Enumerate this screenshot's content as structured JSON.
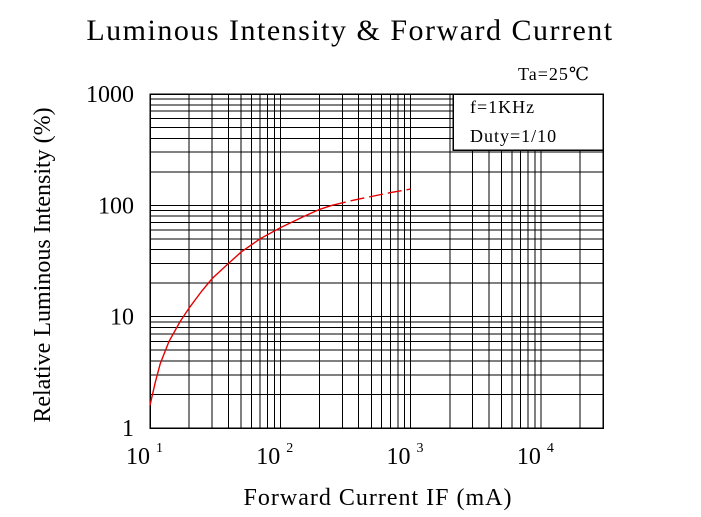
{
  "chart_data": {
    "type": "line",
    "title": "Luminous Intensity & Forward Current",
    "xlabel": "Forward Current IF (mA)",
    "ylabel": "Relative Luminous Intensity (%)",
    "x_scale": "log",
    "y_scale": "log",
    "xlim": [
      10,
      30000
    ],
    "ylim": [
      1,
      1000
    ],
    "grid": true,
    "x_ticks": [
      {
        "base": "10",
        "exp": "1",
        "value": 10
      },
      {
        "base": "10",
        "exp": "2",
        "value": 100
      },
      {
        "base": "10",
        "exp": "3",
        "value": 1000
      },
      {
        "base": "10",
        "exp": "4",
        "value": 10000
      }
    ],
    "y_ticks": [
      {
        "label": "1",
        "value": 1
      },
      {
        "label": "10",
        "value": 10
      },
      {
        "label": "100",
        "value": 100
      },
      {
        "label": "1000",
        "value": 1000
      }
    ],
    "annotations": {
      "temperature": "Ta=25℃",
      "frequency": "f=1KHz",
      "duty": "Duty=1/10"
    },
    "series": [
      {
        "color": "#e60000",
        "segments": [
          {
            "style": "solid",
            "x": [
              10,
              11,
              12,
              14,
              17,
              20,
              25,
              30,
              40,
              50,
              70,
              100,
              150,
              200,
              250
            ],
            "y": [
              1.6,
              2.6,
              3.8,
              6,
              9,
              12,
              17,
              22,
              30,
              38,
              50,
              63,
              79,
              92,
              100
            ]
          },
          {
            "style": "dashed",
            "x": [
              250,
              350,
              500,
              700,
              1000
            ],
            "y": [
              100,
              110,
              120,
              130,
              140
            ]
          }
        ]
      }
    ]
  }
}
